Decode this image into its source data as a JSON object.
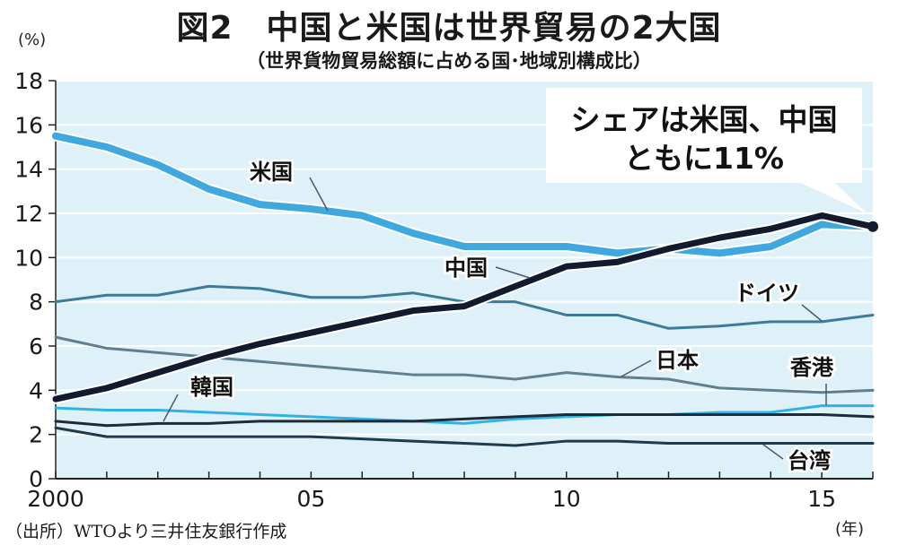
{
  "title": "図2　中国と米国は世界貿易の2大国",
  "subtitle": "（世界貨物貿易総額に占める国･地域別構成比）",
  "source": "（出所）WTOより三井住友銀行作成",
  "callout": {
    "line1": "シェアは米国、中国",
    "line2": "ともに11%"
  },
  "chart_data": {
    "type": "line",
    "title": "図2　中国と米国は世界貿易の2大国",
    "subtitle": "（世界貨物貿易総額に占める国･地域別構成比）",
    "ylabel": "(%)",
    "xlabel": "(年)",
    "xlim": [
      2000,
      2016
    ],
    "ylim": [
      0,
      18
    ],
    "y_ticks": [
      0,
      2,
      4,
      6,
      8,
      10,
      12,
      14,
      16,
      18
    ],
    "x_ticks": [
      {
        "value": 2000,
        "label": "2000"
      },
      {
        "value": 2005,
        "label": "05"
      },
      {
        "value": 2010,
        "label": "10"
      },
      {
        "value": 2015,
        "label": "15"
      }
    ],
    "x": [
      2000,
      2001,
      2002,
      2003,
      2004,
      2005,
      2006,
      2007,
      2008,
      2009,
      2010,
      2011,
      2012,
      2013,
      2014,
      2015,
      2016
    ],
    "series": [
      {
        "name": "米国",
        "color": "#3fa9df",
        "values": [
          15.5,
          15.0,
          14.2,
          13.1,
          12.4,
          12.2,
          11.9,
          11.1,
          10.5,
          10.5,
          10.5,
          10.2,
          10.4,
          10.2,
          10.5,
          11.5,
          11.4
        ]
      },
      {
        "name": "中国",
        "color": "#141a2e",
        "values": [
          3.6,
          4.1,
          4.8,
          5.5,
          6.1,
          6.6,
          7.1,
          7.6,
          7.8,
          8.7,
          9.6,
          9.8,
          10.4,
          10.9,
          11.3,
          11.9,
          11.4
        ]
      },
      {
        "name": "ドイツ",
        "color": "#3c7c9a",
        "values": [
          8.0,
          8.3,
          8.3,
          8.7,
          8.6,
          8.2,
          8.2,
          8.4,
          8.0,
          8.0,
          7.4,
          7.4,
          6.8,
          6.9,
          7.1,
          7.1,
          7.4
        ]
      },
      {
        "name": "日本",
        "color": "#5f7f8f",
        "values": [
          6.4,
          5.9,
          5.7,
          5.5,
          5.3,
          5.1,
          4.9,
          4.7,
          4.7,
          4.5,
          4.8,
          4.6,
          4.5,
          4.1,
          4.0,
          3.9,
          4.0
        ]
      },
      {
        "name": "香港",
        "color": "#1e2a38",
        "values": [
          2.6,
          2.4,
          2.5,
          2.5,
          2.6,
          2.6,
          2.6,
          2.6,
          2.7,
          2.8,
          2.9,
          2.9,
          2.9,
          2.9,
          2.9,
          2.9,
          2.8
        ]
      },
      {
        "name": "韓国",
        "color": "#2fb3e6",
        "values": [
          3.2,
          3.1,
          3.1,
          3.0,
          2.9,
          2.8,
          2.7,
          2.6,
          2.5,
          2.7,
          2.8,
          2.9,
          2.9,
          3.0,
          3.0,
          3.3,
          3.3
        ]
      },
      {
        "name": "台湾",
        "color": "#1f3a4d",
        "values": [
          2.3,
          1.9,
          1.9,
          1.9,
          1.9,
          1.9,
          1.8,
          1.7,
          1.6,
          1.5,
          1.7,
          1.7,
          1.6,
          1.6,
          1.6,
          1.6,
          1.6
        ]
      }
    ]
  }
}
